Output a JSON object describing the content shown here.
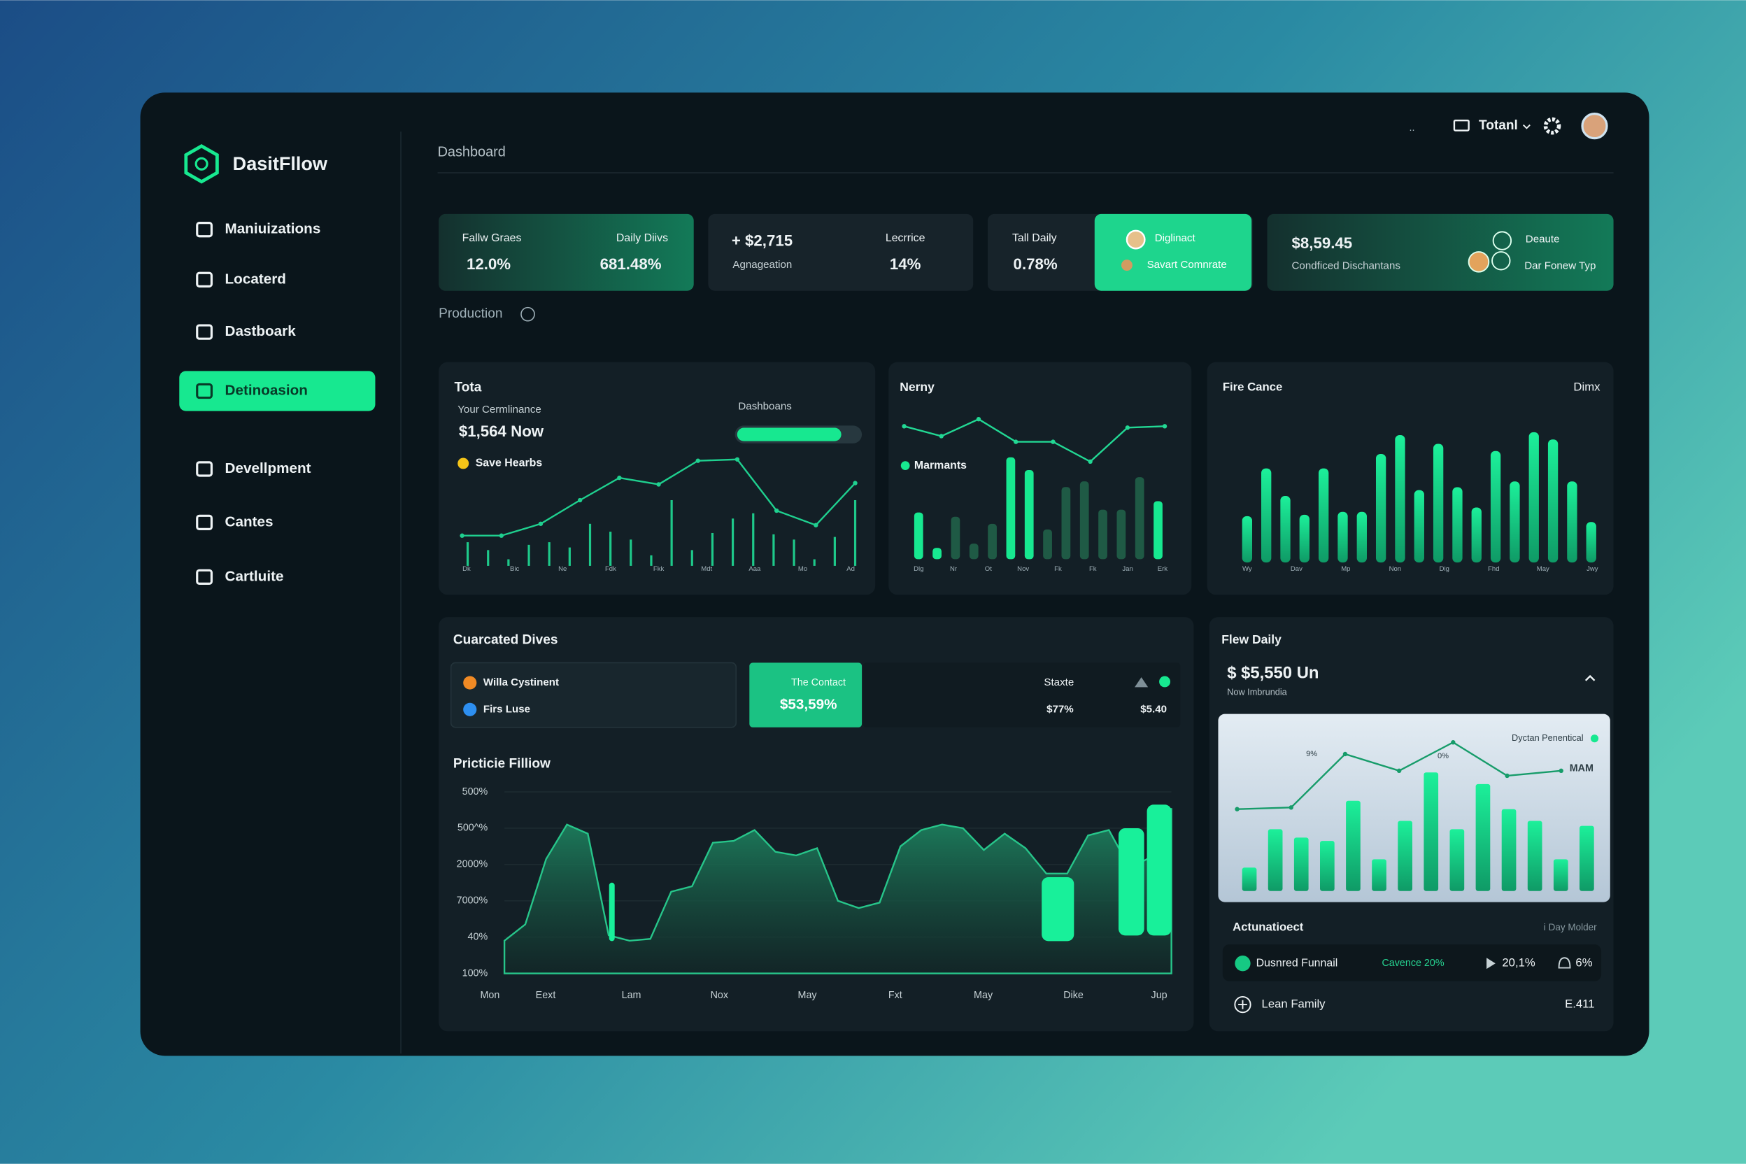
{
  "brand": "DasitFllow",
  "nav": [
    "Maniuizations",
    "Locaterd",
    "Dastboark",
    "Detinoasion",
    "Devellpment",
    "Cantes",
    "Cartluite"
  ],
  "header": {
    "title": "Dashboard",
    "breadcrumb": "..",
    "menu": "Totanl"
  },
  "stats": [
    {
      "label": "Fallw Graes",
      "value": "12.0%",
      "label2": "Daily Diivs",
      "value2": "681.48%"
    },
    {
      "value": "+ $2,715",
      "label": "Agnageation",
      "label2": "Lecrrice",
      "value2": "14%"
    },
    {
      "label": "Tall Daily",
      "value": "0.78%",
      "label2": "Diglinact",
      "value2": "Savart Comnrate"
    },
    {
      "value": "$8,59.45",
      "label": "Condficed Dischantans",
      "label2": "Deaute",
      "value2": "Dar Fonew Typ"
    }
  ],
  "section": "Production",
  "total_panel": {
    "title": "Tota",
    "subtitle": "Your Cermlinance",
    "amount": "$1,564 Now",
    "legend": "Save Hearbs",
    "progress_label": "Dashboans",
    "progress": 85,
    "line": [
      23,
      23,
      32,
      50,
      67,
      62,
      80,
      81,
      42,
      31,
      63
    ],
    "bars": [
      18,
      12,
      5,
      16,
      18,
      14,
      32,
      26,
      20,
      8,
      50,
      12,
      25,
      36,
      40,
      24,
      20,
      5,
      22,
      50
    ],
    "x_labels": [
      "Dk",
      "Bic",
      "Ne",
      "Fdk",
      "Fkk",
      "Mdt",
      "Aaa",
      "Mo",
      "Ad"
    ]
  },
  "nerny_panel": {
    "title": "Nerny",
    "legend": "Marmants",
    "line": [
      94,
      87,
      99,
      83,
      83,
      69,
      93,
      94
    ],
    "bars": [
      33,
      8,
      30,
      11,
      25,
      72,
      63,
      21,
      51,
      55,
      35,
      35,
      58,
      41
    ],
    "x_labels": [
      "Dlg",
      "Nr",
      "Ot",
      "Nov",
      "Fk",
      "Fk",
      "Jan",
      "Erk"
    ]
  },
  "fire_panel": {
    "title": "Fire Cance",
    "tag": "Dimx",
    "bars": [
      32,
      65,
      46,
      33,
      65,
      35,
      35,
      75,
      88,
      50,
      82,
      52,
      38,
      77,
      56,
      90,
      85,
      56,
      28
    ],
    "x_labels": [
      "Wy",
      "Dav",
      "Mp",
      "Non",
      "Dig",
      "Fhd",
      "May",
      "Jwy"
    ]
  },
  "curated_panel": {
    "title": "Cuarcated Dives",
    "legend": [
      "Willa Cystinent",
      "Firs Luse"
    ],
    "contact_label": "The Contact",
    "contact_value": "$53,59%",
    "state_label": "Staxte",
    "state_value": "$77%",
    "state_value2": "$5.40",
    "chart_title": "Pricticie Filliow",
    "y_labels": [
      "500%",
      "500^%",
      "2000%",
      "7000%",
      "40%",
      "100%"
    ],
    "area": [
      18,
      27,
      63,
      82,
      77,
      21,
      18,
      19,
      45,
      48,
      72,
      73,
      79,
      67,
      65,
      69,
      40,
      36,
      39,
      70,
      79,
      82,
      80,
      68,
      77,
      69,
      55,
      55,
      76,
      79,
      58,
      64,
      91
    ],
    "highlights": [
      50,
      53,
      80,
      93
    ],
    "x_labels": [
      "Mon",
      "Eext",
      "Lam",
      "Nox",
      "May",
      "Fxt",
      "May",
      "Dike",
      "Jup"
    ]
  },
  "flow_panel": {
    "title": "Flew Daily",
    "amount": "$ $5,550 Un",
    "subtitle": "Now Imbrundia",
    "legend": "Dyctan Penentical",
    "tag": "MAM",
    "bars": [
      14,
      37,
      32,
      30,
      54,
      19,
      42,
      71,
      37,
      64,
      49,
      42,
      19,
      39
    ],
    "line": [
      49,
      50,
      82,
      72,
      89,
      69,
      72
    ],
    "line_labels": [
      "9%",
      "0%"
    ],
    "section": "Actunatioect",
    "section_note": "i Day Molder",
    "row": {
      "name": "Dusnred Funnail",
      "cadence": "Cavence 20%",
      "rate": "20,1%",
      "share": "6%"
    },
    "footer": {
      "name": "Lean Family",
      "value": "E.411"
    }
  }
}
